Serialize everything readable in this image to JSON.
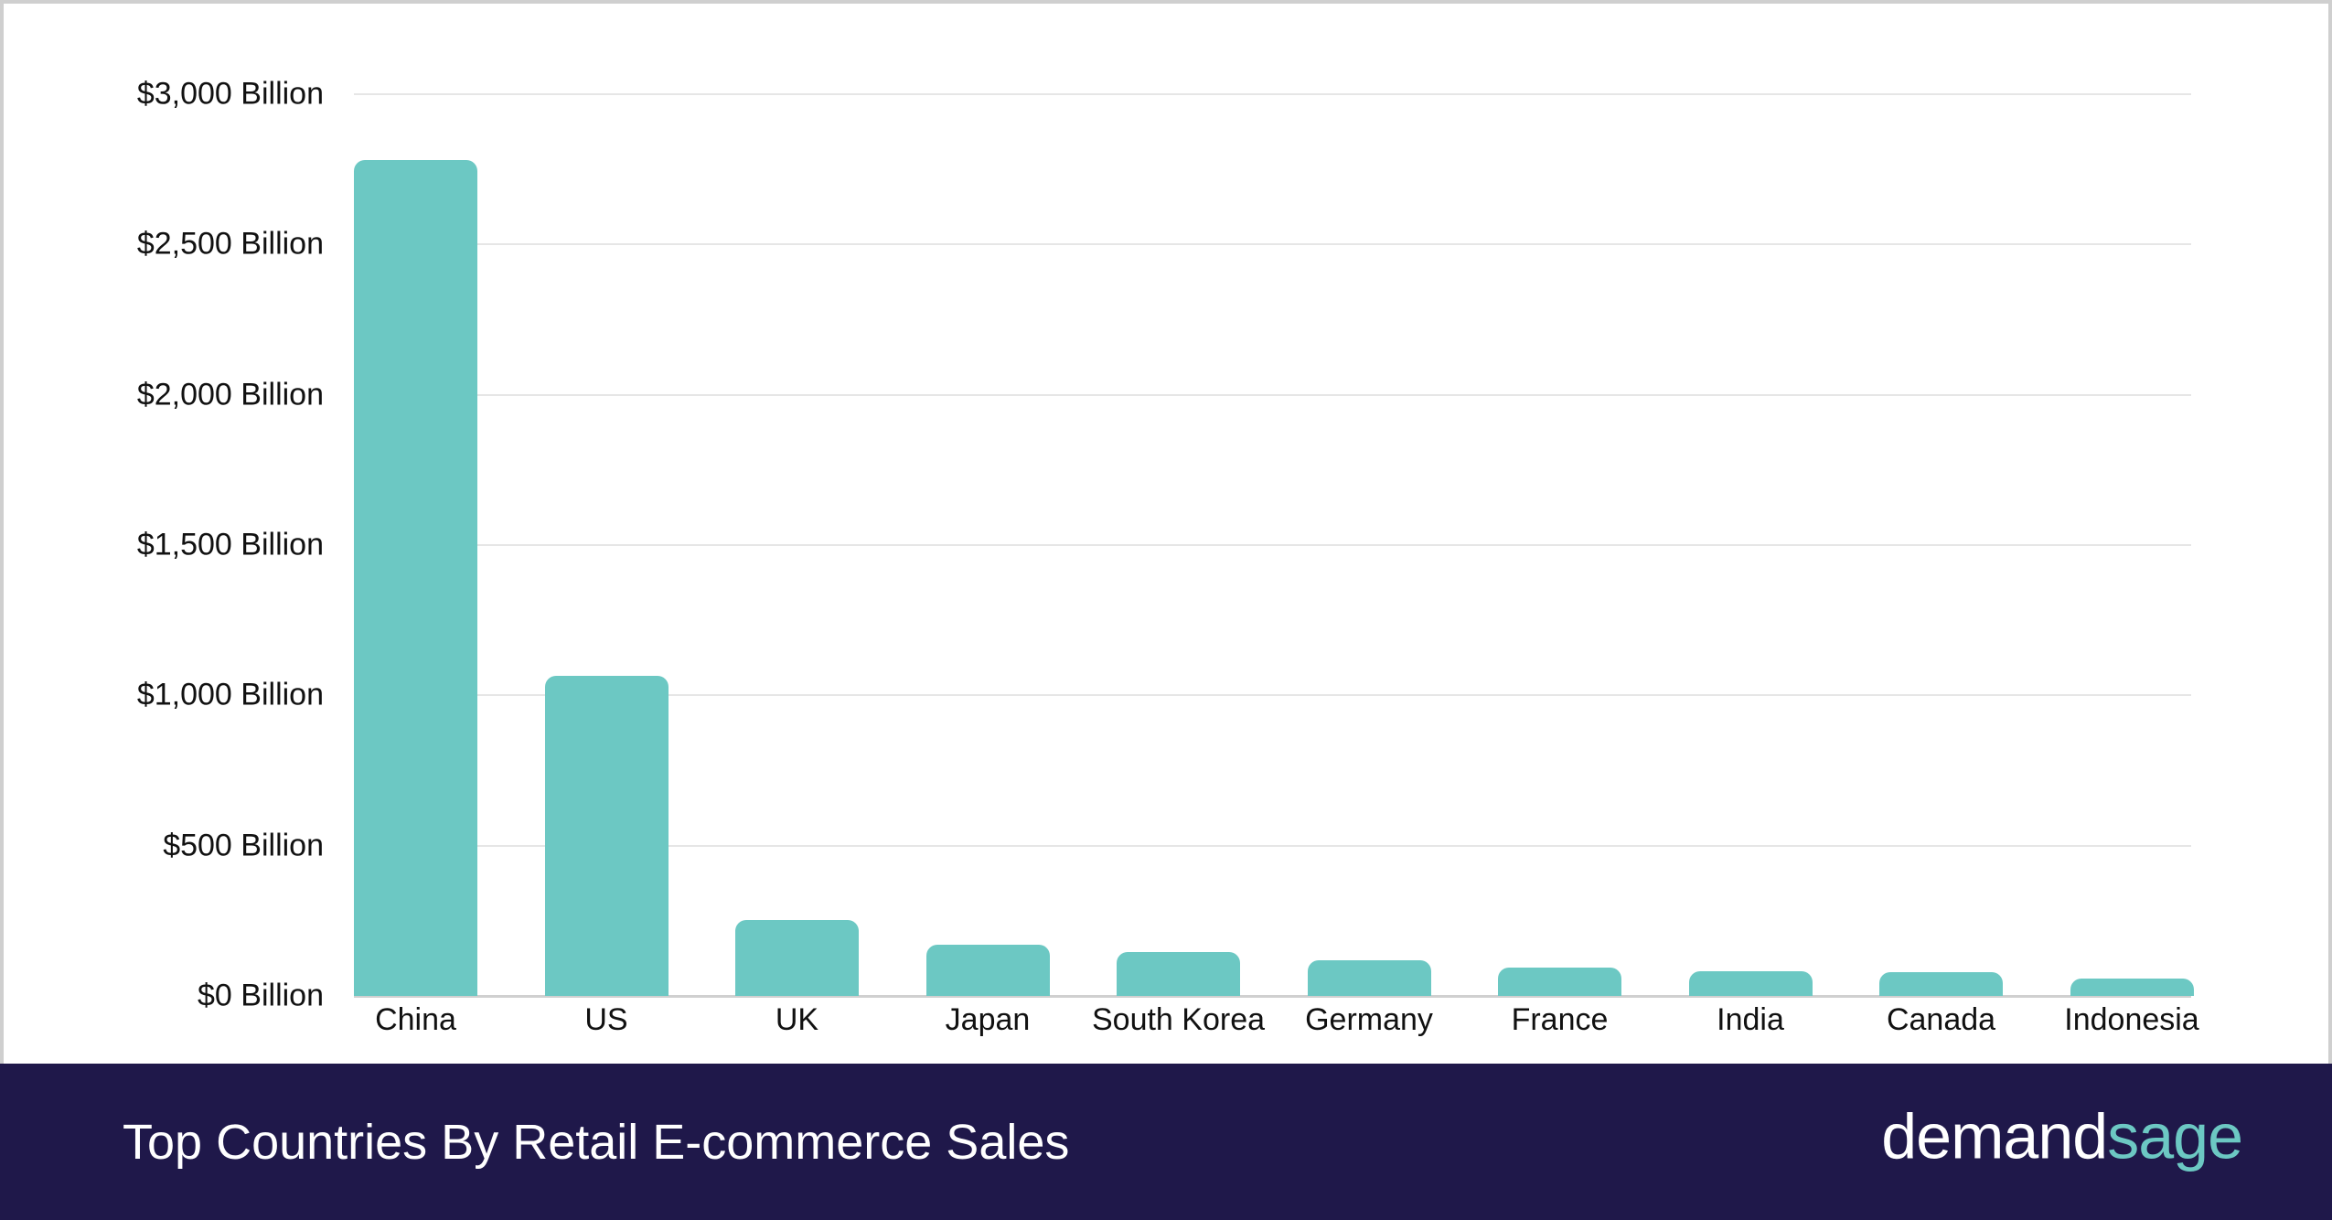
{
  "colors": {
    "bar": "#6cc8c3",
    "footer_bg": "#1f184a",
    "logo_accent": "#6cc8c3"
  },
  "footer": {
    "title": "Top Countries By Retail E-commerce Sales",
    "logo_part1": "demand",
    "logo_part2": "sage"
  },
  "chart_data": {
    "type": "bar",
    "title": "Top Countries By Retail E-commerce Sales",
    "xlabel": "",
    "ylabel": "",
    "ylim": [
      0,
      3000
    ],
    "grid": true,
    "categories": [
      "China",
      "US",
      "UK",
      "Japan",
      "South Korea",
      "Germany",
      "France",
      "India",
      "Canada",
      "Indonesia"
    ],
    "values": [
      2780,
      1065,
      252,
      170,
      146,
      119,
      94,
      82,
      79,
      58
    ],
    "unit": "Billion USD",
    "yticks": [
      {
        "value": 0,
        "label": "$0 Billion"
      },
      {
        "value": 500,
        "label": "$500 Billion"
      },
      {
        "value": 1000,
        "label": "$1,000 Billion"
      },
      {
        "value": 1500,
        "label": "$1,500 Billion"
      },
      {
        "value": 2000,
        "label": "$2,000 Billion"
      },
      {
        "value": 2500,
        "label": "$2,500 Billion"
      },
      {
        "value": 3000,
        "label": "$3,000 Billion"
      }
    ]
  }
}
